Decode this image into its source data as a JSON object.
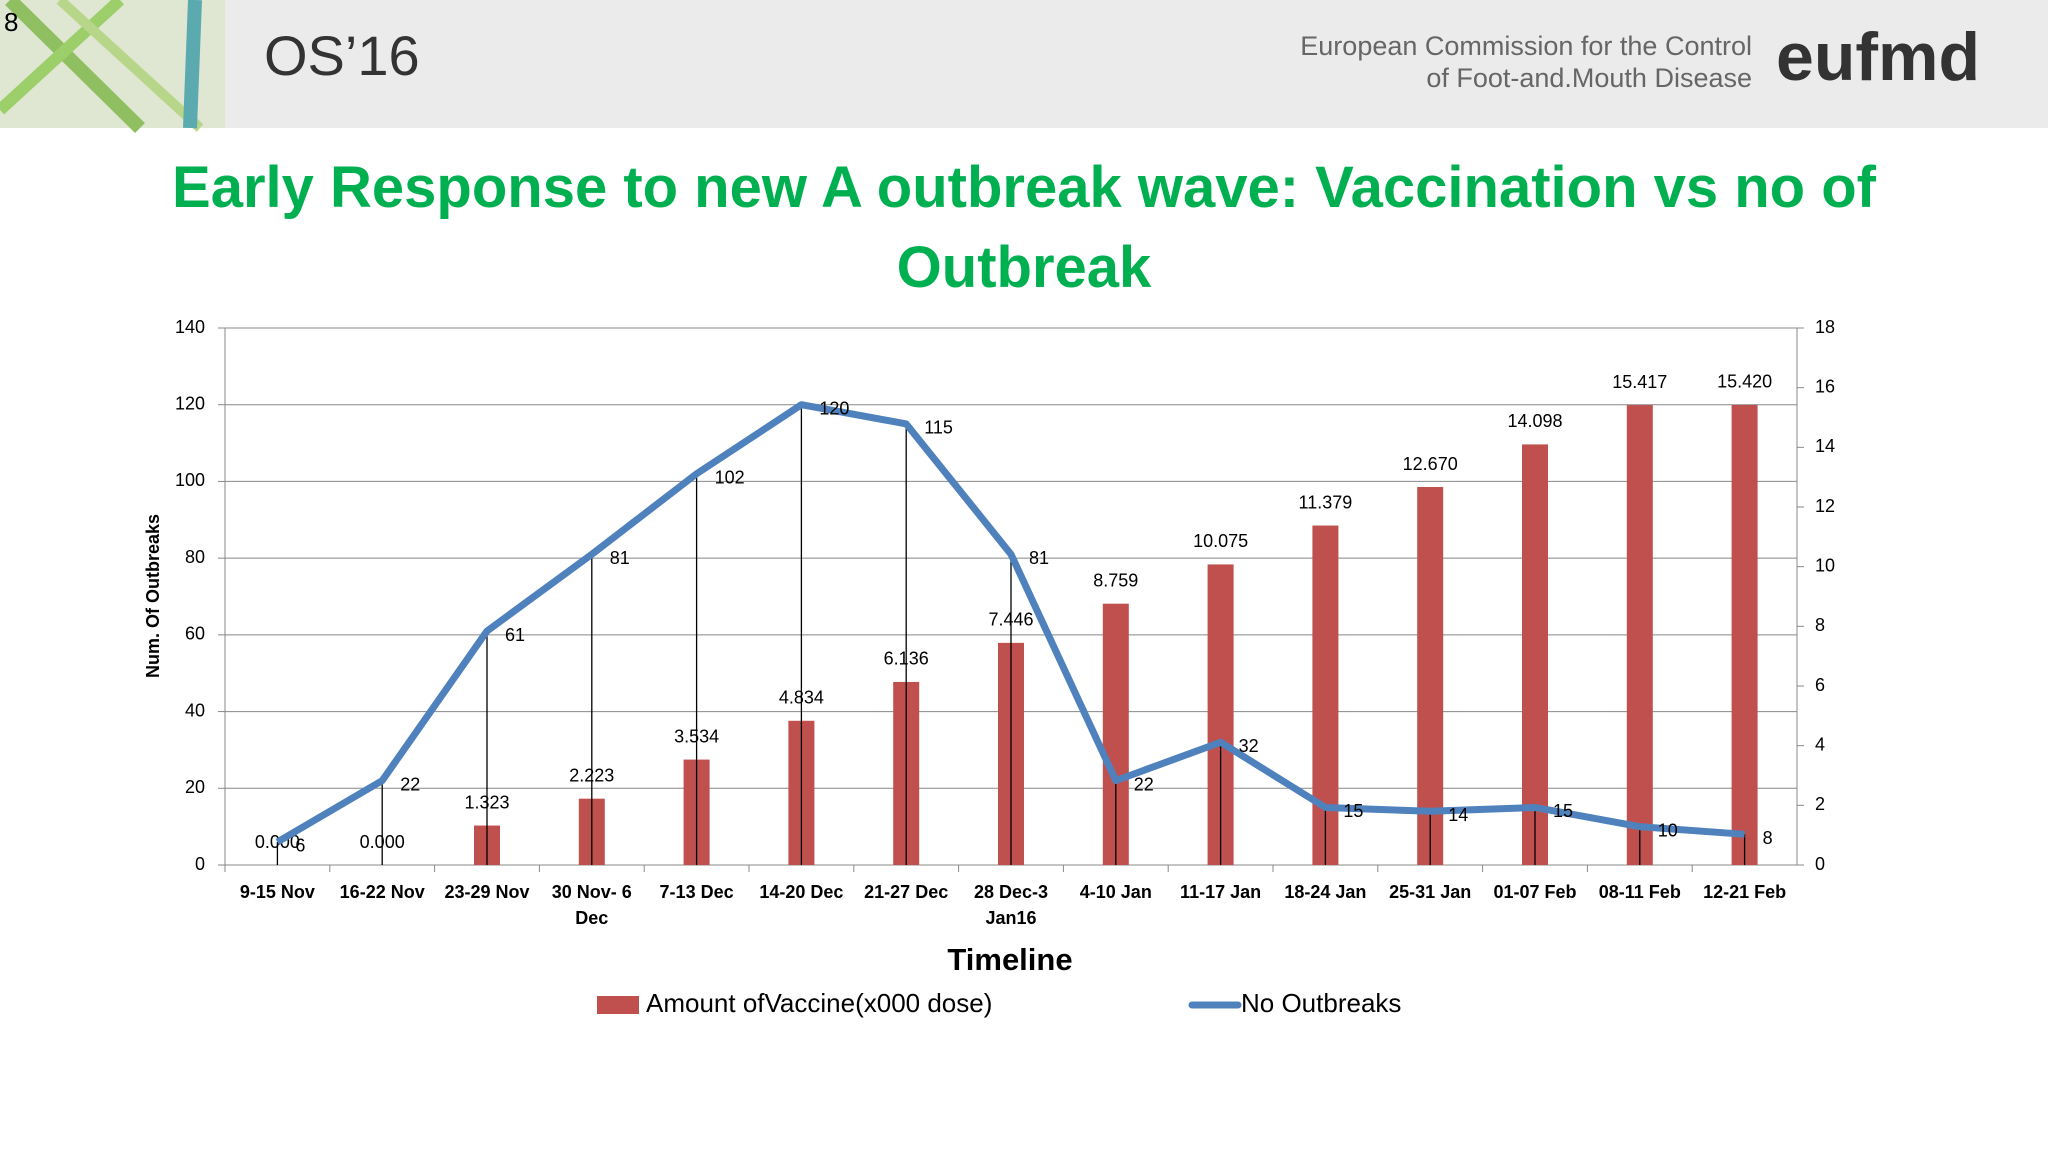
{
  "slide_number": "8",
  "header": {
    "event": "OS’16",
    "org_line1": "European Commission for the Control",
    "org_line2": "of Foot-and.Mouth Disease",
    "logo": "eufmd"
  },
  "chart_data": {
    "type": "bar-line",
    "title": "Early Response to new A outbreak wave: Vaccination vs no of Outbreak",
    "x_label": "Timeline",
    "y_label": "Num. Of Outbreaks",
    "categories": [
      "9-15 Nov",
      "16-22 Nov",
      "23-29 Nov",
      "30 Nov- 6 Dec",
      "7-13 Dec",
      "14-20 Dec",
      "21-27 Dec",
      "28 Dec-3 Jan16",
      "4-10 Jan",
      "11-17 Jan",
      "18-24 Jan",
      "25-31 Jan",
      "01-07 Feb",
      "08-11 Feb",
      "12-21 Feb"
    ],
    "series": [
      {
        "name": "Amount ofVaccine(x000 dose)",
        "type": "bar",
        "axis": "y2",
        "color": "#c0504d",
        "values": [
          0,
          0,
          1.323,
          2.223,
          3.534,
          4.834,
          6.136,
          7.446,
          8.759,
          10.075,
          11.379,
          12.67,
          14.098,
          15.417,
          15.42
        ],
        "value_labels": [
          "0.000",
          "0.000",
          "1.323",
          "2.223",
          "3.534",
          "4.834",
          "6.136",
          "7.446",
          "8.759",
          "10.075",
          "11.379",
          "12.670",
          "14.098",
          "15.417",
          "15.420"
        ]
      },
      {
        "name": "No Outbreaks",
        "type": "line",
        "color": "#4f81bd",
        "values": [
          6,
          22,
          61,
          81,
          102,
          120,
          115,
          81,
          22,
          32,
          15,
          14,
          15,
          10,
          8
        ]
      }
    ],
    "ylim": [
      0,
      140
    ],
    "yticks": [
      0,
      20,
      40,
      60,
      80,
      100,
      120,
      140
    ],
    "y2lim": [
      0,
      18
    ],
    "y2ticks": [
      0,
      2,
      4,
      6,
      8,
      10,
      12,
      14,
      16,
      18
    ],
    "grid": true
  }
}
